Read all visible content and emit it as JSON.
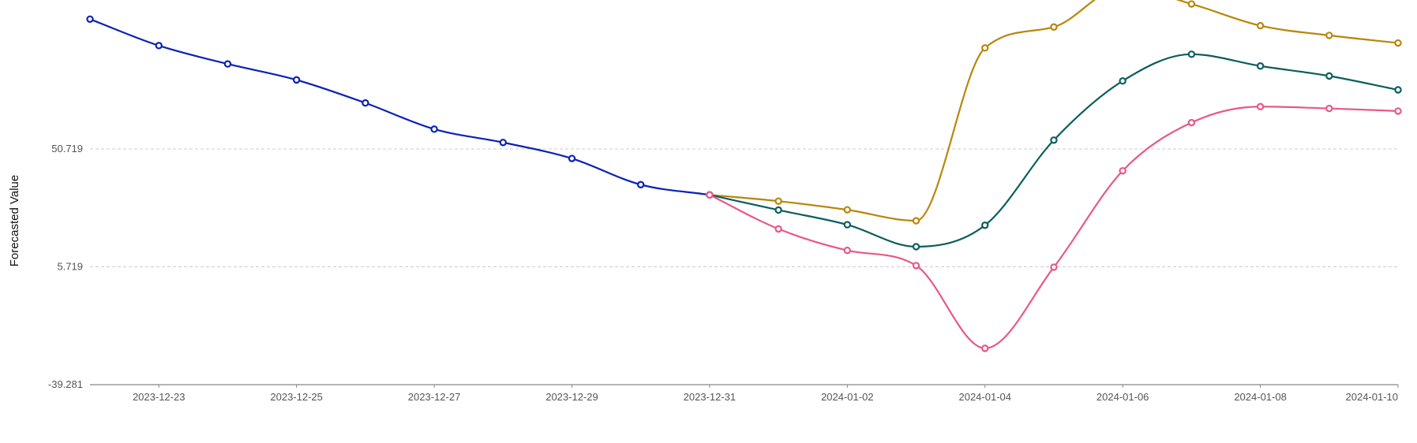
{
  "chart_data": {
    "type": "line",
    "title": "",
    "xlabel": "",
    "ylabel": "Forecasted Value",
    "y_ticks": [
      -39.281,
      5.719,
      50.719
    ],
    "y_tick_labels": [
      "-39.281",
      "5.719",
      "50.719"
    ],
    "ylim": [
      -39.281,
      104
    ],
    "x_ticks": [
      "2023-12-23",
      "2023-12-25",
      "2023-12-27",
      "2023-12-29",
      "2023-12-31",
      "2024-01-02",
      "2024-01-04",
      "2024-01-06",
      "2024-01-08",
      "2024-01-10"
    ],
    "xlim": [
      "2023-12-22",
      "2024-01-10"
    ],
    "grid": "horizontal dashed",
    "series": [
      {
        "color": "#0a22b5",
        "x": [
          "2023-12-22",
          "2023-12-23",
          "2023-12-24",
          "2023-12-25",
          "2023-12-26",
          "2023-12-27",
          "2023-12-28",
          "2023-12-29",
          "2023-12-30",
          "2023-12-31"
        ],
        "values": [
          100.3,
          90.2,
          83.2,
          77.1,
          68.3,
          58.3,
          53.2,
          47.1,
          37.1,
          33.2
        ]
      },
      {
        "color": "#b8860b",
        "x": [
          "2023-12-31",
          "2024-01-01",
          "2024-01-02",
          "2024-01-03",
          "2024-01-04",
          "2024-01-05",
          "2024-01-06",
          "2024-01-07",
          "2024-01-08",
          "2024-01-09",
          "2024-01-10"
        ],
        "values": [
          33.2,
          30.8,
          27.5,
          23.3,
          89.3,
          97.3,
          112.6,
          106.1,
          97.8,
          94.1,
          91.2
        ]
      },
      {
        "color": "#0b5e5e",
        "x": [
          "2023-12-31",
          "2024-01-01",
          "2024-01-02",
          "2024-01-03",
          "2024-01-04",
          "2024-01-05",
          "2024-01-06",
          "2024-01-07",
          "2024-01-08",
          "2024-01-09",
          "2024-01-10"
        ],
        "values": [
          33.2,
          27.4,
          21.8,
          13.4,
          21.6,
          54.1,
          76.7,
          86.9,
          82.4,
          78.6,
          73.3
        ]
      },
      {
        "color": "#e8578b",
        "x": [
          "2023-12-31",
          "2024-01-01",
          "2024-01-02",
          "2024-01-03",
          "2024-01-04",
          "2024-01-05",
          "2024-01-06",
          "2024-01-07",
          "2024-01-08",
          "2024-01-09",
          "2024-01-10"
        ],
        "values": [
          33.2,
          20.2,
          12.0,
          6.2,
          -25.4,
          5.6,
          42.4,
          60.8,
          66.9,
          66.2,
          65.2
        ]
      }
    ]
  }
}
